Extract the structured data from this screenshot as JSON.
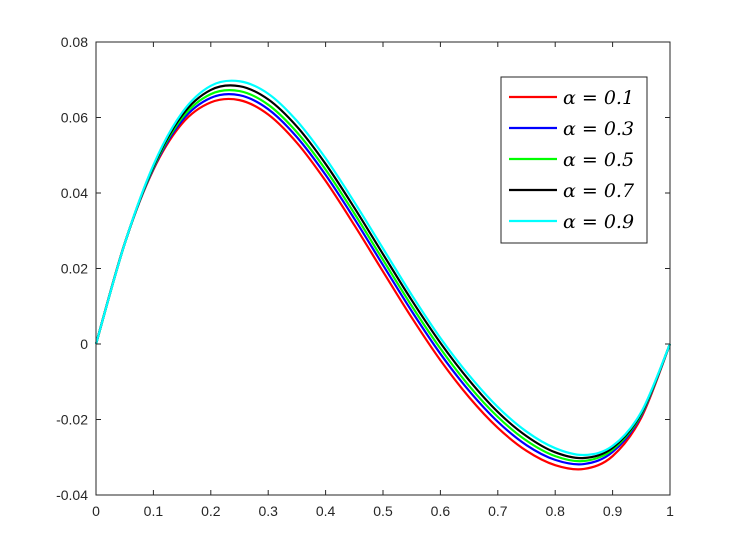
{
  "chart_data": {
    "type": "line",
    "title": "",
    "xlabel": "",
    "ylabel": "",
    "xlim": [
      0,
      1
    ],
    "ylim": [
      -0.04,
      0.08
    ],
    "xticks": [
      0,
      0.1,
      0.2,
      0.3,
      0.4,
      0.5,
      0.6,
      0.7,
      0.8,
      0.9,
      1
    ],
    "xtick_labels": [
      "0",
      "0.1",
      "0.2",
      "0.3",
      "0.4",
      "0.5",
      "0.6",
      "0.7",
      "0.8",
      "0.9",
      "1"
    ],
    "yticks": [
      -0.04,
      -0.02,
      0,
      0.02,
      0.04,
      0.06,
      0.08
    ],
    "ytick_labels": [
      "-0.04",
      "-0.02",
      "0",
      "0.02",
      "0.04",
      "0.06",
      "0.08"
    ],
    "grid": false,
    "legend_position": "top-right",
    "x": [
      0,
      0.05,
      0.1,
      0.15,
      0.2,
      0.25,
      0.3,
      0.35,
      0.4,
      0.45,
      0.5,
      0.55,
      0.6,
      0.65,
      0.7,
      0.75,
      0.8,
      0.85,
      0.9,
      0.95,
      1
    ],
    "series": [
      {
        "name": "α = 0.1",
        "color": "#ff0000",
        "values": [
          0,
          0.0267,
          0.0462,
          0.0584,
          0.064,
          0.0646,
          0.0608,
          0.0533,
          0.0432,
          0.0315,
          0.0192,
          0.007,
          -0.0043,
          -0.0141,
          -0.0222,
          -0.0283,
          -0.0321,
          -0.0331,
          -0.0297,
          -0.0195,
          0
        ]
      },
      {
        "name": "α = 0.3",
        "color": "#0000ff",
        "values": [
          0,
          0.0266,
          0.0465,
          0.0592,
          0.0652,
          0.0659,
          0.0622,
          0.0548,
          0.0448,
          0.0332,
          0.0209,
          0.0087,
          -0.0026,
          -0.0124,
          -0.0206,
          -0.0268,
          -0.0307,
          -0.0318,
          -0.0286,
          -0.0189,
          0
        ]
      },
      {
        "name": "α = 0.5",
        "color": "#00ff00",
        "values": [
          0,
          0.0266,
          0.0468,
          0.0599,
          0.0662,
          0.067,
          0.0634,
          0.0561,
          0.0462,
          0.0346,
          0.0223,
          0.0101,
          -0.0012,
          -0.0111,
          -0.0193,
          -0.0256,
          -0.0297,
          -0.031,
          -0.028,
          -0.0186,
          0
        ]
      },
      {
        "name": "α = 0.7",
        "color": "#000000",
        "values": [
          0,
          0.0266,
          0.0471,
          0.0606,
          0.0673,
          0.0683,
          0.0648,
          0.0576,
          0.0477,
          0.0361,
          0.0238,
          0.0116,
          0.0003,
          -0.0096,
          -0.018,
          -0.0244,
          -0.0287,
          -0.0302,
          -0.0275,
          -0.0183,
          0
        ]
      },
      {
        "name": "α = 0.9",
        "color": "#00ffff",
        "values": [
          0,
          0.0266,
          0.0474,
          0.0613,
          0.0684,
          0.0696,
          0.0663,
          0.0591,
          0.0492,
          0.0376,
          0.0253,
          0.013,
          0.0016,
          -0.0083,
          -0.0167,
          -0.0232,
          -0.0276,
          -0.0294,
          -0.027,
          -0.018,
          0
        ]
      }
    ]
  }
}
